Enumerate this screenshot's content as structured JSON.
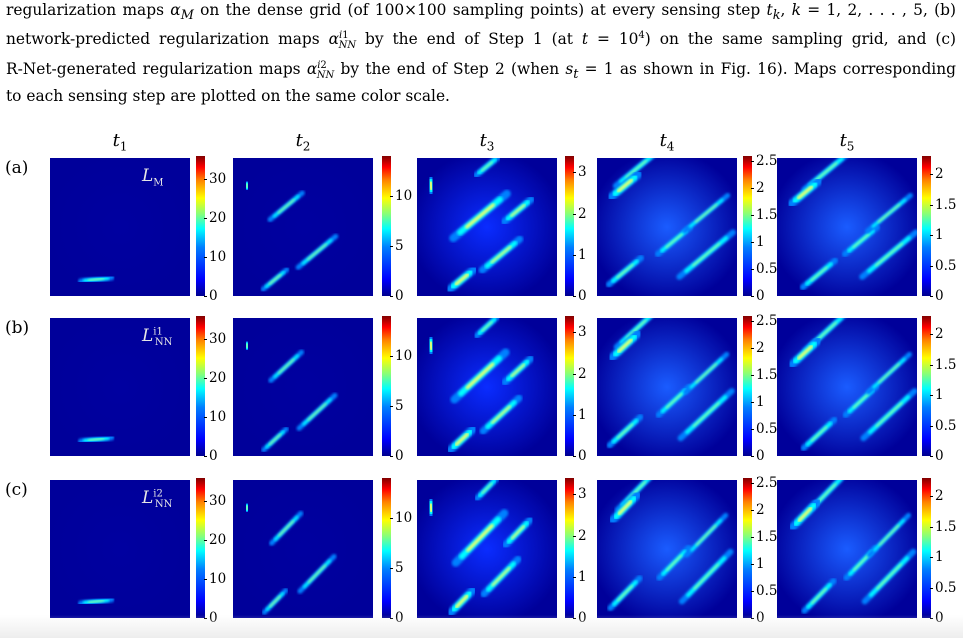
{
  "caption": {
    "lines": [
      "regularization maps αM on the dense grid (of 100×100 sampling points) at every sensing step tk, k = 1, 2, . . . , 5, (b)",
      "network-predicted regularization maps αNN^i1 by the end of Step 1 (at t = 10^4) on the same sampling grid, and (c)",
      "R-Net-generated regularization maps αNN^i2 by the end of Step 2 (when st = 1 as shown in Fig. 16). Maps corresponding",
      "to each sensing step are plotted on the same color scale."
    ]
  },
  "columns": [
    {
      "label": "t",
      "sub": "1"
    },
    {
      "label": "t",
      "sub": "2"
    },
    {
      "label": "t",
      "sub": "3"
    },
    {
      "label": "t",
      "sub": "4"
    },
    {
      "label": "t",
      "sub": "5"
    }
  ],
  "rows": [
    {
      "label": "(a)",
      "panel_name": "L",
      "panel_sub": "M",
      "panel_sup": ""
    },
    {
      "label": "(b)",
      "panel_name": "L",
      "panel_sub": "NN",
      "panel_sup": "i1"
    },
    {
      "label": "(c)",
      "panel_name": "L",
      "panel_sub": "NN",
      "panel_sup": "i2"
    }
  ],
  "colorbar_ticks": [
    [
      "0",
      "10",
      "20",
      "30"
    ],
    [
      "0",
      "5",
      "10"
    ],
    [
      "0",
      "1",
      "2",
      "3"
    ],
    [
      "0",
      "0.5",
      "1",
      "1.5",
      "2",
      "2.5"
    ],
    [
      "0",
      "0.5",
      "1",
      "1.5",
      "2"
    ]
  ],
  "colors": {
    "panel_background": "#00008c",
    "colormap": "jet"
  }
}
